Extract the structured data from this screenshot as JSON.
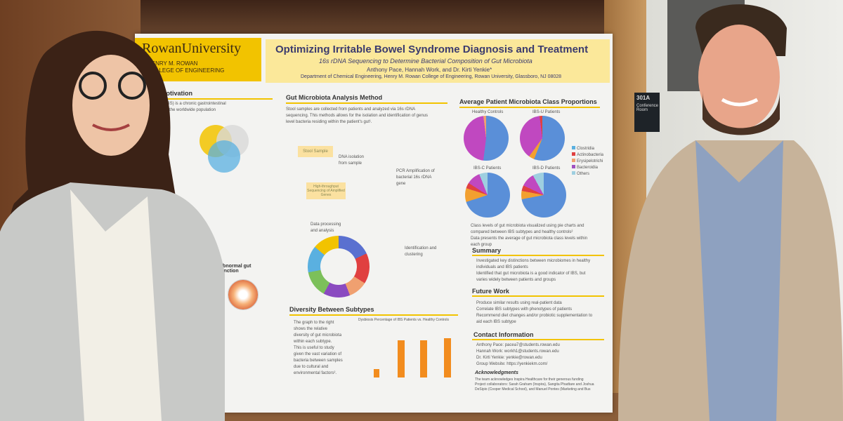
{
  "poster": {
    "logo": "RowanUniversity",
    "college": [
      "HENRY M. ROWAN",
      "COLLEGE OF ENGINEERING"
    ],
    "title": "Optimizing Irritable Bowel Syndrome Diagnosis and Treatment",
    "subtitle": "16s rDNA Sequencing to Determine Bacterial Composition of Gut Microbiota",
    "authors": "Anthony Pace, Hannah Work, and Dr. Kirti Yenkie*",
    "department": "Department of Chemical Engineering, Henry M. Rowan College of Engineering, Rowan University, Glassboro, NJ 08028",
    "sections": {
      "background": "d & Motivation",
      "method": "Gut Microbiota Analysis Method",
      "proportions": "Average Patient Microbiota Class Proportions",
      "diversity": "Diversity Between Subtypes",
      "summary": "Summary",
      "future": "Future Work",
      "contact": "Contact Information"
    },
    "background_lines": [
      "ndrome (IBS) is a chronic gastrointestinal",
      "10-15% of the worldwide population"
    ],
    "method_text": [
      "Stool samples are collected from patients and analyzed via 16s rDNA",
      "sequencing. This methods allows for the isolation and identification of genus",
      "level bacteria residing within the patient's gut¹."
    ],
    "method_steps": {
      "stool": "Stool Sample",
      "dna": "DNA isolation from sample",
      "pcr": "PCR Amplification of bacterial 16s rDNA gene",
      "hts": "High-throughput Sequencing of Amplified Genes",
      "processing": "Data processing and analysis",
      "identification": "Identification and clustering"
    },
    "abnormal": "Abnormal gut function",
    "pie_labels": [
      "Healthy Controls",
      "IBS-U Patients",
      "IBS-C Patients",
      "IBS-D Patients"
    ],
    "legend": [
      "Clostridia",
      "Actinobacteria",
      "Erysipelotrichi",
      "Bacteroidia",
      "Others"
    ],
    "legend_colors": [
      "#5ab0e0",
      "#e04040",
      "#f0a070",
      "#a050c0",
      "#9ecfe0"
    ],
    "proportion_bullets": [
      "Class levels of gut microbiota visualized using pie charts and",
      "compared between IBS subtypes and healthy controls²",
      "Data presents the average of gut microbiota class levels within",
      "each group"
    ],
    "summary_bullets": [
      "Investigated key distinctions between microbiomes in healthy",
      "individuals and IBS patients",
      "Identified that gut microbiota is a good indicator of IBS, but",
      "varies widely between patients and groups"
    ],
    "future_bullets": [
      "Produce similar results using real-patient data",
      "Correlate IBS subtypes with phenotypes of patients",
      "Recommend diet changes and/or probiotic supplementation to",
      "aid each IBS subtype"
    ],
    "diversity_text": [
      "The graph to the right",
      "shows the relative",
      "diversity of gut microbiota",
      "within each subtype.",
      "This is useful to study",
      "given the vast variation of",
      "bacteria between samples",
      "due to cultural and",
      "environmental factors²."
    ],
    "dysbiosis_title": "Dysbiosis Percentage of IBS Patients vs. Healthy Controls",
    "contacts": [
      "Anthony Pace: pacea7@students.rowan.edu",
      "Hannah Work: workh1@students.rowan.edu",
      "Dr. Kirti Yenkie: yenkie@rowan.edu",
      "Group Website: https://yenkiekm.com/"
    ],
    "ack_title": "Acknowledgments",
    "ack_lines": [
      "The team acknowledges Inspira Healthcare for their generous funding",
      "Project collaborators: Sarah Graham (Inspira), Sangita Phadtare and Joshua",
      "DeSipio (Cooper Medical School), and Manuel Pontes (Marketing and Bus"
    ]
  },
  "room_sign": {
    "number": "301A",
    "label": "Conference Room"
  },
  "colors": {
    "rowan_gold": "#f2c300",
    "poster_bg": "#f3f3f1",
    "bar_orange": "#f28c1e",
    "title_blue": "#3b3b6e"
  }
}
